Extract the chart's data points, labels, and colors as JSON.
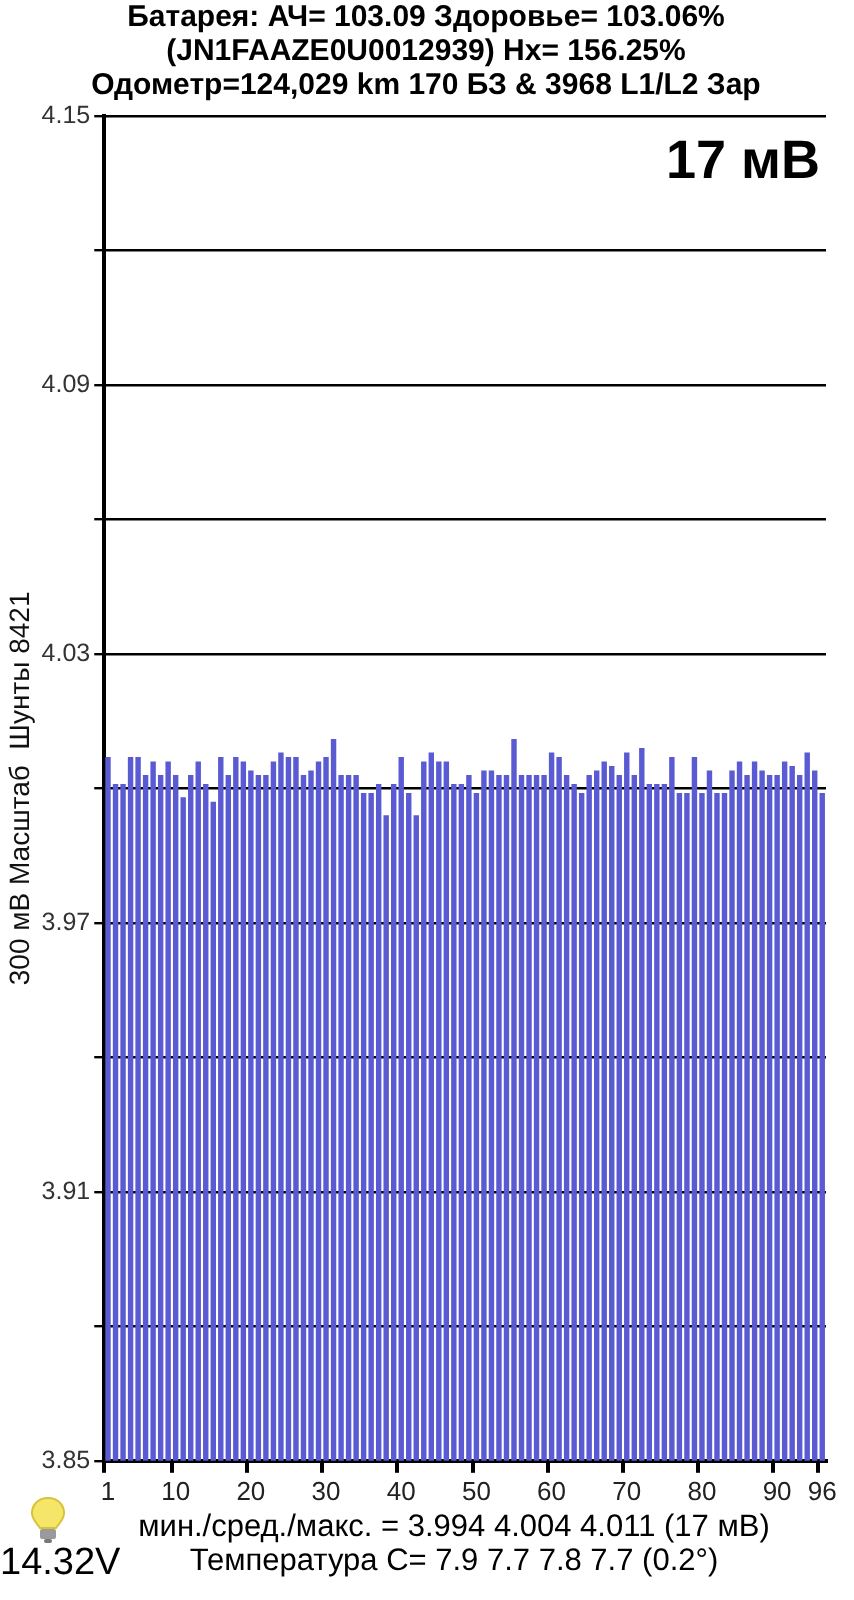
{
  "chart_data": {
    "type": "bar",
    "title": "Батарея:  АЧ= 103.09  Здоровье= 103.06%",
    "subtitle": "(JN1FAAZE0U0012939)   Hx= 156.25%",
    "ylabel": "300 мВ Масштаб  Шунты 8421",
    "annotations": [
      "Одометр=124,029 km 170 БЗ & 3968 L1/L2 Зар",
      "17 мВ",
      "мин./сред./макс. = 3.994 4.004 4.011  (17 мВ)",
      "Температура C= 7.9  7.7  7.8  7.7  (0.2°)",
      "14.32V"
    ],
    "categories": [
      "1",
      null,
      null,
      null,
      null,
      null,
      null,
      null,
      null,
      "10",
      null,
      null,
      null,
      null,
      null,
      null,
      null,
      null,
      null,
      "20",
      null,
      null,
      null,
      null,
      null,
      null,
      null,
      null,
      null,
      "30",
      null,
      null,
      null,
      null,
      null,
      null,
      null,
      null,
      null,
      "40",
      null,
      null,
      null,
      null,
      null,
      null,
      null,
      null,
      null,
      "50",
      null,
      null,
      null,
      null,
      null,
      null,
      null,
      null,
      null,
      "60",
      null,
      null,
      null,
      null,
      null,
      null,
      null,
      null,
      null,
      "70",
      null,
      null,
      null,
      null,
      null,
      null,
      null,
      null,
      null,
      "80",
      null,
      null,
      null,
      null,
      null,
      null,
      null,
      null,
      null,
      "90",
      null,
      null,
      null,
      null,
      null,
      "96"
    ],
    "values": [
      4.007,
      4.001,
      4.001,
      4.007,
      4.007,
      4.003,
      4.006,
      4.003,
      4.006,
      4.003,
      3.998,
      4.003,
      4.006,
      4.001,
      3.997,
      4.007,
      4.003,
      4.007,
      4.006,
      4.004,
      4.003,
      4.003,
      4.006,
      4.008,
      4.007,
      4.007,
      4.003,
      4.004,
      4.006,
      4.007,
      4.011,
      4.003,
      4.003,
      4.003,
      3.999,
      3.999,
      4.001,
      3.994,
      4.001,
      4.007,
      3.999,
      3.994,
      4.006,
      4.008,
      4.006,
      4.006,
      4.001,
      4.001,
      4.003,
      3.999,
      4.004,
      4.004,
      4.003,
      4.003,
      4.011,
      4.003,
      4.003,
      4.003,
      4.003,
      4.008,
      4.007,
      4.003,
      4.001,
      3.999,
      4.003,
      4.004,
      4.006,
      4.005,
      4.003,
      4.008,
      4.003,
      4.009,
      4.001,
      4.001,
      4.001,
      4.007,
      3.999,
      3.999,
      4.007,
      3.999,
      4.004,
      3.999,
      3.999,
      4.004,
      4.006,
      4.003,
      4.006,
      4.004,
      4.003,
      4.003,
      4.006,
      4.005,
      4.003,
      4.008,
      4.004,
      3.999
    ],
    "color": "#5a5ad2",
    "ylim": [
      3.85,
      4.15
    ],
    "yticks": [
      3.85,
      {
        "value": 3.88,
        "label": null
      },
      3.91,
      {
        "value": 3.94,
        "label": null
      },
      3.97,
      {
        "value": 4.0,
        "label": null
      },
      4.03,
      {
        "value": 4.06,
        "label": null
      },
      4.09,
      {
        "value": 4.12,
        "label": null
      },
      4.15
    ],
    "grid": "y"
  }
}
